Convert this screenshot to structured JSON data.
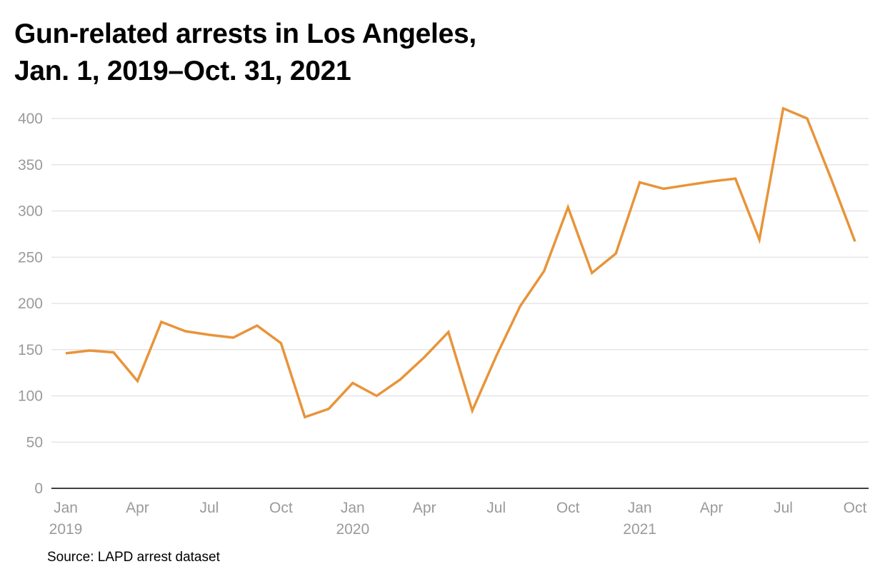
{
  "chart_data": {
    "type": "line",
    "title_lines": [
      "Gun-related arrests in Los Angeles,",
      "Jan. 1, 2019–Oct. 31, 2021"
    ],
    "source": "Source: LAPD arrest dataset",
    "ylim": [
      0,
      400
    ],
    "yticks": [
      0,
      50,
      100,
      150,
      200,
      250,
      300,
      350,
      400
    ],
    "grid": true,
    "x": [
      "2019-01",
      "2019-02",
      "2019-03",
      "2019-04",
      "2019-05",
      "2019-06",
      "2019-07",
      "2019-08",
      "2019-09",
      "2019-10",
      "2019-11",
      "2019-12",
      "2020-01",
      "2020-02",
      "2020-03",
      "2020-04",
      "2020-05",
      "2020-06",
      "2020-07",
      "2020-08",
      "2020-09",
      "2020-10",
      "2020-11",
      "2020-12",
      "2021-01",
      "2021-02",
      "2021-03",
      "2021-04",
      "2021-05",
      "2021-06",
      "2021-07",
      "2021-08",
      "2021-09",
      "2021-10"
    ],
    "xticks": [
      {
        "index": 0,
        "label": "Jan",
        "year": "2019"
      },
      {
        "index": 3,
        "label": "Apr",
        "year": ""
      },
      {
        "index": 6,
        "label": "Jul",
        "year": ""
      },
      {
        "index": 9,
        "label": "Oct",
        "year": ""
      },
      {
        "index": 12,
        "label": "Jan",
        "year": "2020"
      },
      {
        "index": 15,
        "label": "Apr",
        "year": ""
      },
      {
        "index": 18,
        "label": "Jul",
        "year": ""
      },
      {
        "index": 21,
        "label": "Oct",
        "year": ""
      },
      {
        "index": 24,
        "label": "Jan",
        "year": "2021"
      },
      {
        "index": 27,
        "label": "Apr",
        "year": ""
      },
      {
        "index": 30,
        "label": "Jul",
        "year": ""
      },
      {
        "index": 33,
        "label": "Oct",
        "year": ""
      }
    ],
    "series": [
      {
        "color": "#e8943a",
        "values": [
          146,
          149,
          147,
          116,
          180,
          170,
          166,
          163,
          176,
          157,
          77,
          86,
          114,
          100,
          118,
          142,
          169,
          84,
          143,
          197,
          235,
          304,
          233,
          254,
          331,
          324,
          328,
          332,
          335,
          269,
          411,
          400,
          335,
          267
        ]
      }
    ]
  },
  "colors": {
    "line": "#e8943a",
    "grid": "#e0e0e0",
    "axis": "#000000",
    "tick_text": "#9a9a9a"
  }
}
